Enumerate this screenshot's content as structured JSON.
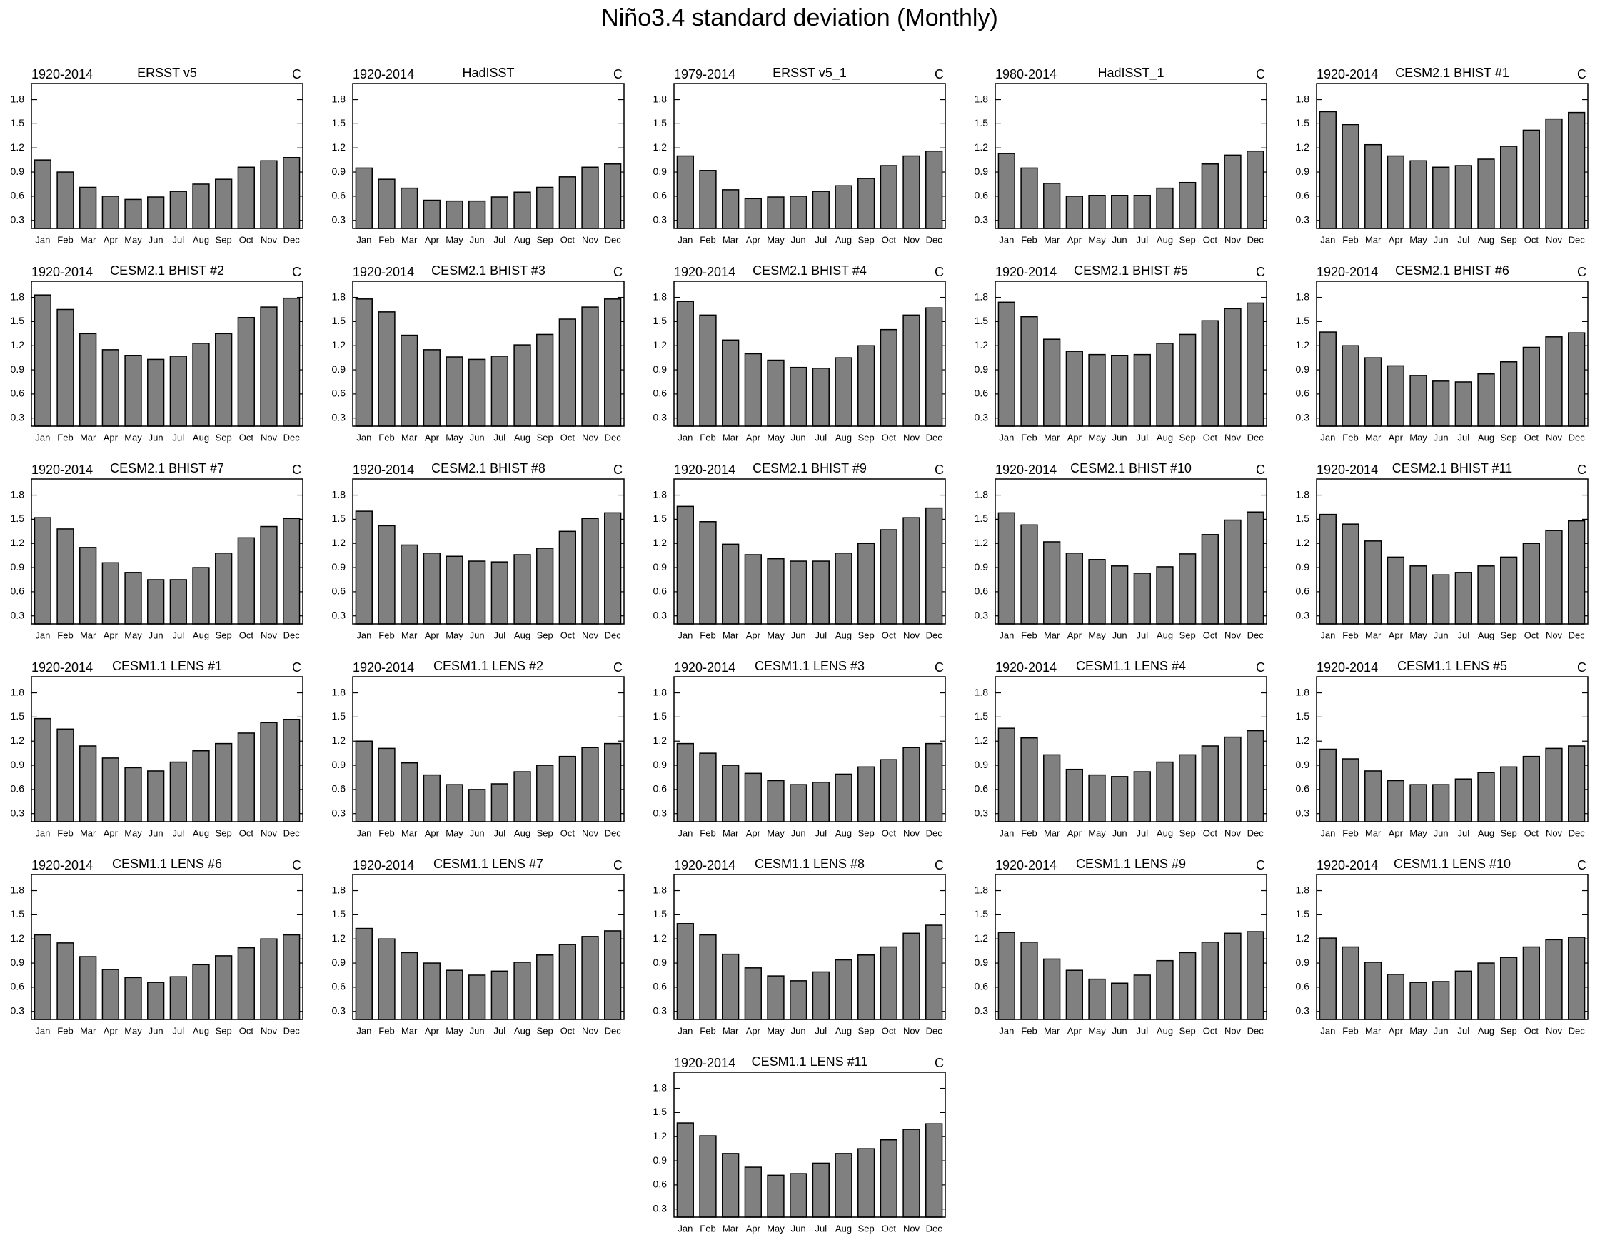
{
  "title": "Niño3.4 standard deviation (Monthly)",
  "chart_data": [
    {
      "type": "bar",
      "left_label": "1920-2014",
      "title": "ERSST v5",
      "right_label": "C",
      "categories": [
        "Jan",
        "Feb",
        "Mar",
        "Apr",
        "May",
        "Jun",
        "Jul",
        "Aug",
        "Sep",
        "Oct",
        "Nov",
        "Dec"
      ],
      "values": [
        1.05,
        0.9,
        0.71,
        0.6,
        0.56,
        0.59,
        0.66,
        0.75,
        0.81,
        0.96,
        1.04,
        1.08
      ],
      "color": "#808080",
      "ylim": [
        0.2,
        2.0
      ],
      "yticks": [
        0.3,
        0.6,
        0.9,
        1.2,
        1.5,
        1.8
      ]
    },
    {
      "type": "bar",
      "left_label": "1920-2014",
      "title": "HadISST",
      "right_label": "C",
      "categories": [
        "Jan",
        "Feb",
        "Mar",
        "Apr",
        "May",
        "Jun",
        "Jul",
        "Aug",
        "Sep",
        "Oct",
        "Nov",
        "Dec"
      ],
      "values": [
        0.95,
        0.81,
        0.7,
        0.55,
        0.54,
        0.54,
        0.59,
        0.65,
        0.71,
        0.84,
        0.96,
        1.0
      ],
      "color": "#808080",
      "ylim": [
        0.2,
        2.0
      ],
      "yticks": [
        0.3,
        0.6,
        0.9,
        1.2,
        1.5,
        1.8
      ]
    },
    {
      "type": "bar",
      "left_label": "1979-2014",
      "title": "ERSST v5_1",
      "right_label": "C",
      "categories": [
        "Jan",
        "Feb",
        "Mar",
        "Apr",
        "May",
        "Jun",
        "Jul",
        "Aug",
        "Sep",
        "Oct",
        "Nov",
        "Dec"
      ],
      "values": [
        1.1,
        0.92,
        0.68,
        0.57,
        0.59,
        0.6,
        0.66,
        0.73,
        0.82,
        0.98,
        1.1,
        1.16
      ],
      "color": "#808080",
      "ylim": [
        0.2,
        2.0
      ],
      "yticks": [
        0.3,
        0.6,
        0.9,
        1.2,
        1.5,
        1.8
      ]
    },
    {
      "type": "bar",
      "left_label": "1980-2014",
      "title": "HadISST_1",
      "right_label": "C",
      "categories": [
        "Jan",
        "Feb",
        "Mar",
        "Apr",
        "May",
        "Jun",
        "Jul",
        "Aug",
        "Sep",
        "Oct",
        "Nov",
        "Dec"
      ],
      "values": [
        1.13,
        0.95,
        0.76,
        0.6,
        0.61,
        0.61,
        0.61,
        0.7,
        0.77,
        1.0,
        1.11,
        1.16
      ],
      "color": "#808080",
      "ylim": [
        0.2,
        2.0
      ],
      "yticks": [
        0.3,
        0.6,
        0.9,
        1.2,
        1.5,
        1.8
      ]
    },
    {
      "type": "bar",
      "left_label": "1920-2014",
      "title": "CESM2.1 BHIST #1",
      "right_label": "C",
      "categories": [
        "Jan",
        "Feb",
        "Mar",
        "Apr",
        "May",
        "Jun",
        "Jul",
        "Aug",
        "Sep",
        "Oct",
        "Nov",
        "Dec"
      ],
      "values": [
        1.65,
        1.49,
        1.24,
        1.1,
        1.04,
        0.96,
        0.98,
        1.06,
        1.22,
        1.42,
        1.56,
        1.64
      ],
      "color": "#808080",
      "ylim": [
        0.2,
        2.0
      ],
      "yticks": [
        0.3,
        0.6,
        0.9,
        1.2,
        1.5,
        1.8
      ]
    },
    {
      "type": "bar",
      "left_label": "1920-2014",
      "title": "CESM2.1 BHIST #2",
      "right_label": "C",
      "categories": [
        "Jan",
        "Feb",
        "Mar",
        "Apr",
        "May",
        "Jun",
        "Jul",
        "Aug",
        "Sep",
        "Oct",
        "Nov",
        "Dec"
      ],
      "values": [
        1.83,
        1.65,
        1.35,
        1.15,
        1.08,
        1.03,
        1.07,
        1.23,
        1.35,
        1.55,
        1.68,
        1.79
      ],
      "color": "#808080",
      "ylim": [
        0.2,
        2.0
      ],
      "yticks": [
        0.3,
        0.6,
        0.9,
        1.2,
        1.5,
        1.8
      ]
    },
    {
      "type": "bar",
      "left_label": "1920-2014",
      "title": "CESM2.1 BHIST #3",
      "right_label": "C",
      "categories": [
        "Jan",
        "Feb",
        "Mar",
        "Apr",
        "May",
        "Jun",
        "Jul",
        "Aug",
        "Sep",
        "Oct",
        "Nov",
        "Dec"
      ],
      "values": [
        1.78,
        1.62,
        1.33,
        1.15,
        1.06,
        1.03,
        1.07,
        1.21,
        1.34,
        1.53,
        1.68,
        1.78
      ],
      "color": "#808080",
      "ylim": [
        0.2,
        2.0
      ],
      "yticks": [
        0.3,
        0.6,
        0.9,
        1.2,
        1.5,
        1.8
      ]
    },
    {
      "type": "bar",
      "left_label": "1920-2014",
      "title": "CESM2.1 BHIST #4",
      "right_label": "C",
      "categories": [
        "Jan",
        "Feb",
        "Mar",
        "Apr",
        "May",
        "Jun",
        "Jul",
        "Aug",
        "Sep",
        "Oct",
        "Nov",
        "Dec"
      ],
      "values": [
        1.75,
        1.58,
        1.27,
        1.1,
        1.02,
        0.93,
        0.92,
        1.05,
        1.2,
        1.4,
        1.58,
        1.67
      ],
      "color": "#808080",
      "ylim": [
        0.2,
        2.0
      ],
      "yticks": [
        0.3,
        0.6,
        0.9,
        1.2,
        1.5,
        1.8
      ]
    },
    {
      "type": "bar",
      "left_label": "1920-2014",
      "title": "CESM2.1 BHIST #5",
      "right_label": "C",
      "categories": [
        "Jan",
        "Feb",
        "Mar",
        "Apr",
        "May",
        "Jun",
        "Jul",
        "Aug",
        "Sep",
        "Oct",
        "Nov",
        "Dec"
      ],
      "values": [
        1.74,
        1.56,
        1.28,
        1.13,
        1.09,
        1.08,
        1.09,
        1.23,
        1.34,
        1.51,
        1.66,
        1.73
      ],
      "color": "#808080",
      "ylim": [
        0.2,
        2.0
      ],
      "yticks": [
        0.3,
        0.6,
        0.9,
        1.2,
        1.5,
        1.8
      ]
    },
    {
      "type": "bar",
      "left_label": "1920-2014",
      "title": "CESM2.1 BHIST #6",
      "right_label": "C",
      "categories": [
        "Jan",
        "Feb",
        "Mar",
        "Apr",
        "May",
        "Jun",
        "Jul",
        "Aug",
        "Sep",
        "Oct",
        "Nov",
        "Dec"
      ],
      "values": [
        1.37,
        1.2,
        1.05,
        0.95,
        0.83,
        0.76,
        0.75,
        0.85,
        1.0,
        1.18,
        1.31,
        1.36
      ],
      "color": "#808080",
      "ylim": [
        0.2,
        2.0
      ],
      "yticks": [
        0.3,
        0.6,
        0.9,
        1.2,
        1.5,
        1.8
      ]
    },
    {
      "type": "bar",
      "left_label": "1920-2014",
      "title": "CESM2.1 BHIST #7",
      "right_label": "C",
      "categories": [
        "Jan",
        "Feb",
        "Mar",
        "Apr",
        "May",
        "Jun",
        "Jul",
        "Aug",
        "Sep",
        "Oct",
        "Nov",
        "Dec"
      ],
      "values": [
        1.52,
        1.38,
        1.15,
        0.96,
        0.84,
        0.75,
        0.75,
        0.9,
        1.08,
        1.27,
        1.41,
        1.51
      ],
      "color": "#808080",
      "ylim": [
        0.2,
        2.0
      ],
      "yticks": [
        0.3,
        0.6,
        0.9,
        1.2,
        1.5,
        1.8
      ]
    },
    {
      "type": "bar",
      "left_label": "1920-2014",
      "title": "CESM2.1 BHIST #8",
      "right_label": "C",
      "categories": [
        "Jan",
        "Feb",
        "Mar",
        "Apr",
        "May",
        "Jun",
        "Jul",
        "Aug",
        "Sep",
        "Oct",
        "Nov",
        "Dec"
      ],
      "values": [
        1.6,
        1.42,
        1.18,
        1.08,
        1.04,
        0.98,
        0.97,
        1.06,
        1.14,
        1.35,
        1.51,
        1.58
      ],
      "color": "#808080",
      "ylim": [
        0.2,
        2.0
      ],
      "yticks": [
        0.3,
        0.6,
        0.9,
        1.2,
        1.5,
        1.8
      ]
    },
    {
      "type": "bar",
      "left_label": "1920-2014",
      "title": "CESM2.1 BHIST #9",
      "right_label": "C",
      "categories": [
        "Jan",
        "Feb",
        "Mar",
        "Apr",
        "May",
        "Jun",
        "Jul",
        "Aug",
        "Sep",
        "Oct",
        "Nov",
        "Dec"
      ],
      "values": [
        1.66,
        1.47,
        1.19,
        1.06,
        1.01,
        0.98,
        0.98,
        1.08,
        1.2,
        1.37,
        1.52,
        1.64
      ],
      "color": "#808080",
      "ylim": [
        0.2,
        2.0
      ],
      "yticks": [
        0.3,
        0.6,
        0.9,
        1.2,
        1.5,
        1.8
      ]
    },
    {
      "type": "bar",
      "left_label": "1920-2014",
      "title": "CESM2.1 BHIST #10",
      "right_label": "C",
      "categories": [
        "Jan",
        "Feb",
        "Mar",
        "Apr",
        "May",
        "Jun",
        "Jul",
        "Aug",
        "Sep",
        "Oct",
        "Nov",
        "Dec"
      ],
      "values": [
        1.58,
        1.43,
        1.22,
        1.08,
        1.0,
        0.92,
        0.83,
        0.91,
        1.07,
        1.31,
        1.49,
        1.59
      ],
      "color": "#808080",
      "ylim": [
        0.2,
        2.0
      ],
      "yticks": [
        0.3,
        0.6,
        0.9,
        1.2,
        1.5,
        1.8
      ]
    },
    {
      "type": "bar",
      "left_label": "1920-2014",
      "title": "CESM2.1 BHIST #11",
      "right_label": "C",
      "categories": [
        "Jan",
        "Feb",
        "Mar",
        "Apr",
        "May",
        "Jun",
        "Jul",
        "Aug",
        "Sep",
        "Oct",
        "Nov",
        "Dec"
      ],
      "values": [
        1.56,
        1.44,
        1.23,
        1.03,
        0.92,
        0.81,
        0.84,
        0.92,
        1.03,
        1.2,
        1.36,
        1.48
      ],
      "color": "#808080",
      "ylim": [
        0.2,
        2.0
      ],
      "yticks": [
        0.3,
        0.6,
        0.9,
        1.2,
        1.5,
        1.8
      ]
    },
    {
      "type": "bar",
      "left_label": "1920-2014",
      "title": "CESM1.1 LENS #1",
      "right_label": "C",
      "categories": [
        "Jan",
        "Feb",
        "Mar",
        "Apr",
        "May",
        "Jun",
        "Jul",
        "Aug",
        "Sep",
        "Oct",
        "Nov",
        "Dec"
      ],
      "values": [
        1.48,
        1.35,
        1.14,
        0.99,
        0.87,
        0.83,
        0.94,
        1.08,
        1.17,
        1.3,
        1.43,
        1.47
      ],
      "color": "#808080",
      "ylim": [
        0.2,
        2.0
      ],
      "yticks": [
        0.3,
        0.6,
        0.9,
        1.2,
        1.5,
        1.8
      ]
    },
    {
      "type": "bar",
      "left_label": "1920-2014",
      "title": "CESM1.1 LENS #2",
      "right_label": "C",
      "categories": [
        "Jan",
        "Feb",
        "Mar",
        "Apr",
        "May",
        "Jun",
        "Jul",
        "Aug",
        "Sep",
        "Oct",
        "Nov",
        "Dec"
      ],
      "values": [
        1.2,
        1.11,
        0.93,
        0.78,
        0.66,
        0.6,
        0.67,
        0.82,
        0.9,
        1.01,
        1.12,
        1.17
      ],
      "color": "#808080",
      "ylim": [
        0.2,
        2.0
      ],
      "yticks": [
        0.3,
        0.6,
        0.9,
        1.2,
        1.5,
        1.8
      ]
    },
    {
      "type": "bar",
      "left_label": "1920-2014",
      "title": "CESM1.1 LENS #3",
      "right_label": "C",
      "categories": [
        "Jan",
        "Feb",
        "Mar",
        "Apr",
        "May",
        "Jun",
        "Jul",
        "Aug",
        "Sep",
        "Oct",
        "Nov",
        "Dec"
      ],
      "values": [
        1.17,
        1.05,
        0.9,
        0.8,
        0.71,
        0.66,
        0.69,
        0.79,
        0.88,
        0.97,
        1.12,
        1.17
      ],
      "color": "#808080",
      "ylim": [
        0.2,
        2.0
      ],
      "yticks": [
        0.3,
        0.6,
        0.9,
        1.2,
        1.5,
        1.8
      ]
    },
    {
      "type": "bar",
      "left_label": "1920-2014",
      "title": "CESM1.1 LENS #4",
      "right_label": "C",
      "categories": [
        "Jan",
        "Feb",
        "Mar",
        "Apr",
        "May",
        "Jun",
        "Jul",
        "Aug",
        "Sep",
        "Oct",
        "Nov",
        "Dec"
      ],
      "values": [
        1.36,
        1.24,
        1.03,
        0.85,
        0.78,
        0.76,
        0.82,
        0.94,
        1.03,
        1.14,
        1.25,
        1.33
      ],
      "color": "#808080",
      "ylim": [
        0.2,
        2.0
      ],
      "yticks": [
        0.3,
        0.6,
        0.9,
        1.2,
        1.5,
        1.8
      ]
    },
    {
      "type": "bar",
      "left_label": "1920-2014",
      "title": "CESM1.1 LENS #5",
      "right_label": "C",
      "categories": [
        "Jan",
        "Feb",
        "Mar",
        "Apr",
        "May",
        "Jun",
        "Jul",
        "Aug",
        "Sep",
        "Oct",
        "Nov",
        "Dec"
      ],
      "values": [
        1.1,
        0.98,
        0.83,
        0.71,
        0.66,
        0.66,
        0.73,
        0.81,
        0.88,
        1.01,
        1.11,
        1.14
      ],
      "color": "#808080",
      "ylim": [
        0.2,
        2.0
      ],
      "yticks": [
        0.3,
        0.6,
        0.9,
        1.2,
        1.5,
        1.8
      ]
    },
    {
      "type": "bar",
      "left_label": "1920-2014",
      "title": "CESM1.1 LENS #6",
      "right_label": "C",
      "categories": [
        "Jan",
        "Feb",
        "Mar",
        "Apr",
        "May",
        "Jun",
        "Jul",
        "Aug",
        "Sep",
        "Oct",
        "Nov",
        "Dec"
      ],
      "values": [
        1.25,
        1.15,
        0.98,
        0.82,
        0.72,
        0.66,
        0.73,
        0.88,
        0.99,
        1.09,
        1.2,
        1.25
      ],
      "color": "#808080",
      "ylim": [
        0.2,
        2.0
      ],
      "yticks": [
        0.3,
        0.6,
        0.9,
        1.2,
        1.5,
        1.8
      ]
    },
    {
      "type": "bar",
      "left_label": "1920-2014",
      "title": "CESM1.1 LENS #7",
      "right_label": "C",
      "categories": [
        "Jan",
        "Feb",
        "Mar",
        "Apr",
        "May",
        "Jun",
        "Jul",
        "Aug",
        "Sep",
        "Oct",
        "Nov",
        "Dec"
      ],
      "values": [
        1.33,
        1.2,
        1.03,
        0.9,
        0.81,
        0.75,
        0.8,
        0.91,
        1.0,
        1.13,
        1.23,
        1.3
      ],
      "color": "#808080",
      "ylim": [
        0.2,
        2.0
      ],
      "yticks": [
        0.3,
        0.6,
        0.9,
        1.2,
        1.5,
        1.8
      ]
    },
    {
      "type": "bar",
      "left_label": "1920-2014",
      "title": "CESM1.1 LENS #8",
      "right_label": "C",
      "categories": [
        "Jan",
        "Feb",
        "Mar",
        "Apr",
        "May",
        "Jun",
        "Jul",
        "Aug",
        "Sep",
        "Oct",
        "Nov",
        "Dec"
      ],
      "values": [
        1.39,
        1.25,
        1.01,
        0.84,
        0.74,
        0.68,
        0.79,
        0.94,
        1.0,
        1.1,
        1.27,
        1.37
      ],
      "color": "#808080",
      "ylim": [
        0.2,
        2.0
      ],
      "yticks": [
        0.3,
        0.6,
        0.9,
        1.2,
        1.5,
        1.8
      ]
    },
    {
      "type": "bar",
      "left_label": "1920-2014",
      "title": "CESM1.1 LENS #9",
      "right_label": "C",
      "categories": [
        "Jan",
        "Feb",
        "Mar",
        "Apr",
        "May",
        "Jun",
        "Jul",
        "Aug",
        "Sep",
        "Oct",
        "Nov",
        "Dec"
      ],
      "values": [
        1.28,
        1.16,
        0.95,
        0.81,
        0.7,
        0.65,
        0.75,
        0.93,
        1.03,
        1.16,
        1.27,
        1.29
      ],
      "color": "#808080",
      "ylim": [
        0.2,
        2.0
      ],
      "yticks": [
        0.3,
        0.6,
        0.9,
        1.2,
        1.5,
        1.8
      ]
    },
    {
      "type": "bar",
      "left_label": "1920-2014",
      "title": "CESM1.1 LENS #10",
      "right_label": "C",
      "categories": [
        "Jan",
        "Feb",
        "Mar",
        "Apr",
        "May",
        "Jun",
        "Jul",
        "Aug",
        "Sep",
        "Oct",
        "Nov",
        "Dec"
      ],
      "values": [
        1.21,
        1.1,
        0.91,
        0.76,
        0.66,
        0.67,
        0.8,
        0.9,
        0.97,
        1.1,
        1.19,
        1.22
      ],
      "color": "#808080",
      "ylim": [
        0.2,
        2.0
      ],
      "yticks": [
        0.3,
        0.6,
        0.9,
        1.2,
        1.5,
        1.8
      ]
    },
    {
      "type": "bar",
      "left_label": "1920-2014",
      "title": "CESM1.1 LENS #11",
      "right_label": "C",
      "categories": [
        "Jan",
        "Feb",
        "Mar",
        "Apr",
        "May",
        "Jun",
        "Jul",
        "Aug",
        "Sep",
        "Oct",
        "Nov",
        "Dec"
      ],
      "values": [
        1.37,
        1.21,
        0.99,
        0.82,
        0.72,
        0.74,
        0.87,
        0.99,
        1.05,
        1.16,
        1.29,
        1.36
      ],
      "color": "#808080",
      "ylim": [
        0.2,
        2.0
      ],
      "yticks": [
        0.3,
        0.6,
        0.9,
        1.2,
        1.5,
        1.8
      ]
    }
  ]
}
